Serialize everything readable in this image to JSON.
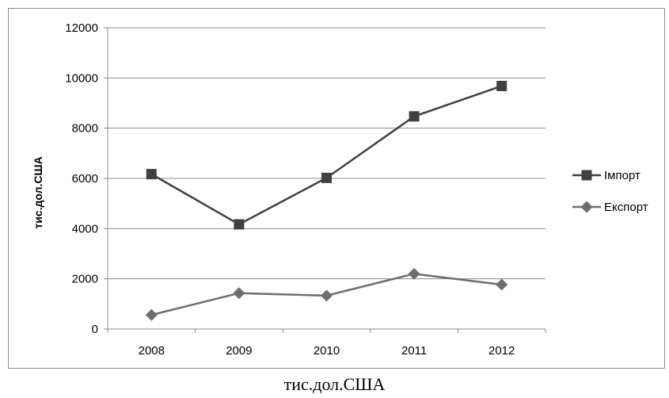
{
  "chart_data": {
    "type": "line",
    "categories": [
      "2008",
      "2009",
      "2010",
      "2011",
      "2012"
    ],
    "series": [
      {
        "name": "Імпорт",
        "values": [
          6170,
          4170,
          6020,
          8470,
          9680
        ],
        "color": "#404040",
        "marker": "square"
      },
      {
        "name": "Експорт",
        "values": [
          560,
          1430,
          1330,
          2200,
          1770
        ],
        "color": "#6e6e6e",
        "marker": "diamond"
      }
    ],
    "ylabel": "тис.дол.США",
    "ylim": [
      0,
      12000
    ],
    "yticks": [
      "0",
      "2000",
      "4000",
      "6000",
      "8000",
      "10000",
      "12000"
    ],
    "grid": true,
    "legend": "right"
  },
  "caption": "тис.дол.США"
}
